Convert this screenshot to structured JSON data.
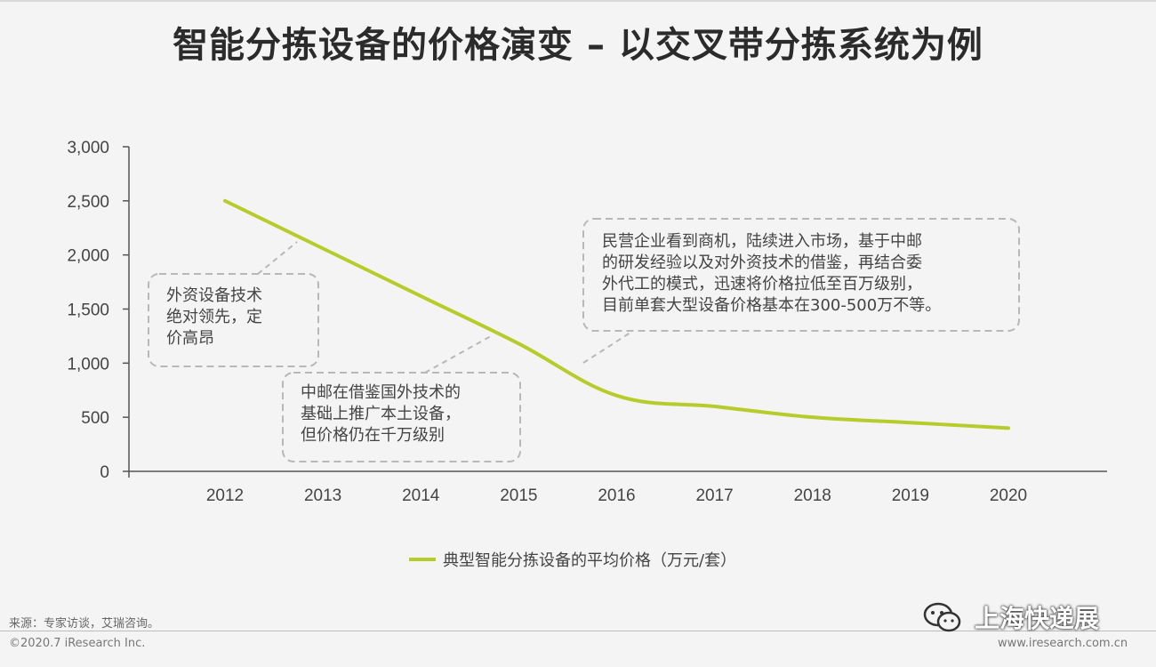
{
  "title": "智能分拣设备的价格演变 – 以交叉带分拣系统为例",
  "chart_data": {
    "type": "line",
    "x": [
      2012,
      2013,
      2014,
      2015,
      2016,
      2017,
      2018,
      2019,
      2020
    ],
    "x_tick_labels": [
      "2012",
      "2013",
      "2014",
      "2015",
      "2016",
      "2017",
      "2018",
      "2019",
      "2020"
    ],
    "y_ticks": [
      0,
      500,
      1000,
      1500,
      2000,
      2500,
      3000
    ],
    "y_tick_labels": [
      "0",
      "500",
      "1,000",
      "1,500",
      "2,000",
      "2,500",
      "3,000"
    ],
    "ylim": [
      0,
      3000
    ],
    "series": [
      {
        "name": "典型智能分拣设备的平均价格（万元/套）",
        "color": "#b7cc2a",
        "values": [
          2500,
          2060,
          1620,
          1180,
          700,
          600,
          500,
          450,
          400
        ]
      }
    ],
    "legend_position": "bottom-center",
    "grid": false,
    "annotations": [
      {
        "id": "a1",
        "lines": [
          "外资设备技术",
          "绝对领先，定",
          "价高昂"
        ]
      },
      {
        "id": "a2",
        "lines": [
          "中邮在借鉴国外技术的",
          "基础上推广本土设备，",
          "但价格仍在千万级别"
        ]
      },
      {
        "id": "a3",
        "lines": [
          "民营企业看到商机，陆续进入市场，基于中邮",
          "的研发经验以及对外资技术的借鉴，再结合委",
          "外代工的模式，迅速将价格拉低至百万级别，",
          "目前单套大型设备价格基本在300-500万不等。"
        ]
      }
    ]
  },
  "footer": {
    "source": "来源：专家访谈，艾瑞咨询。",
    "copyright": "©2020.7 iResearch Inc.",
    "website": "www.iresearch.com.cn",
    "watermark": "上海快递展"
  }
}
